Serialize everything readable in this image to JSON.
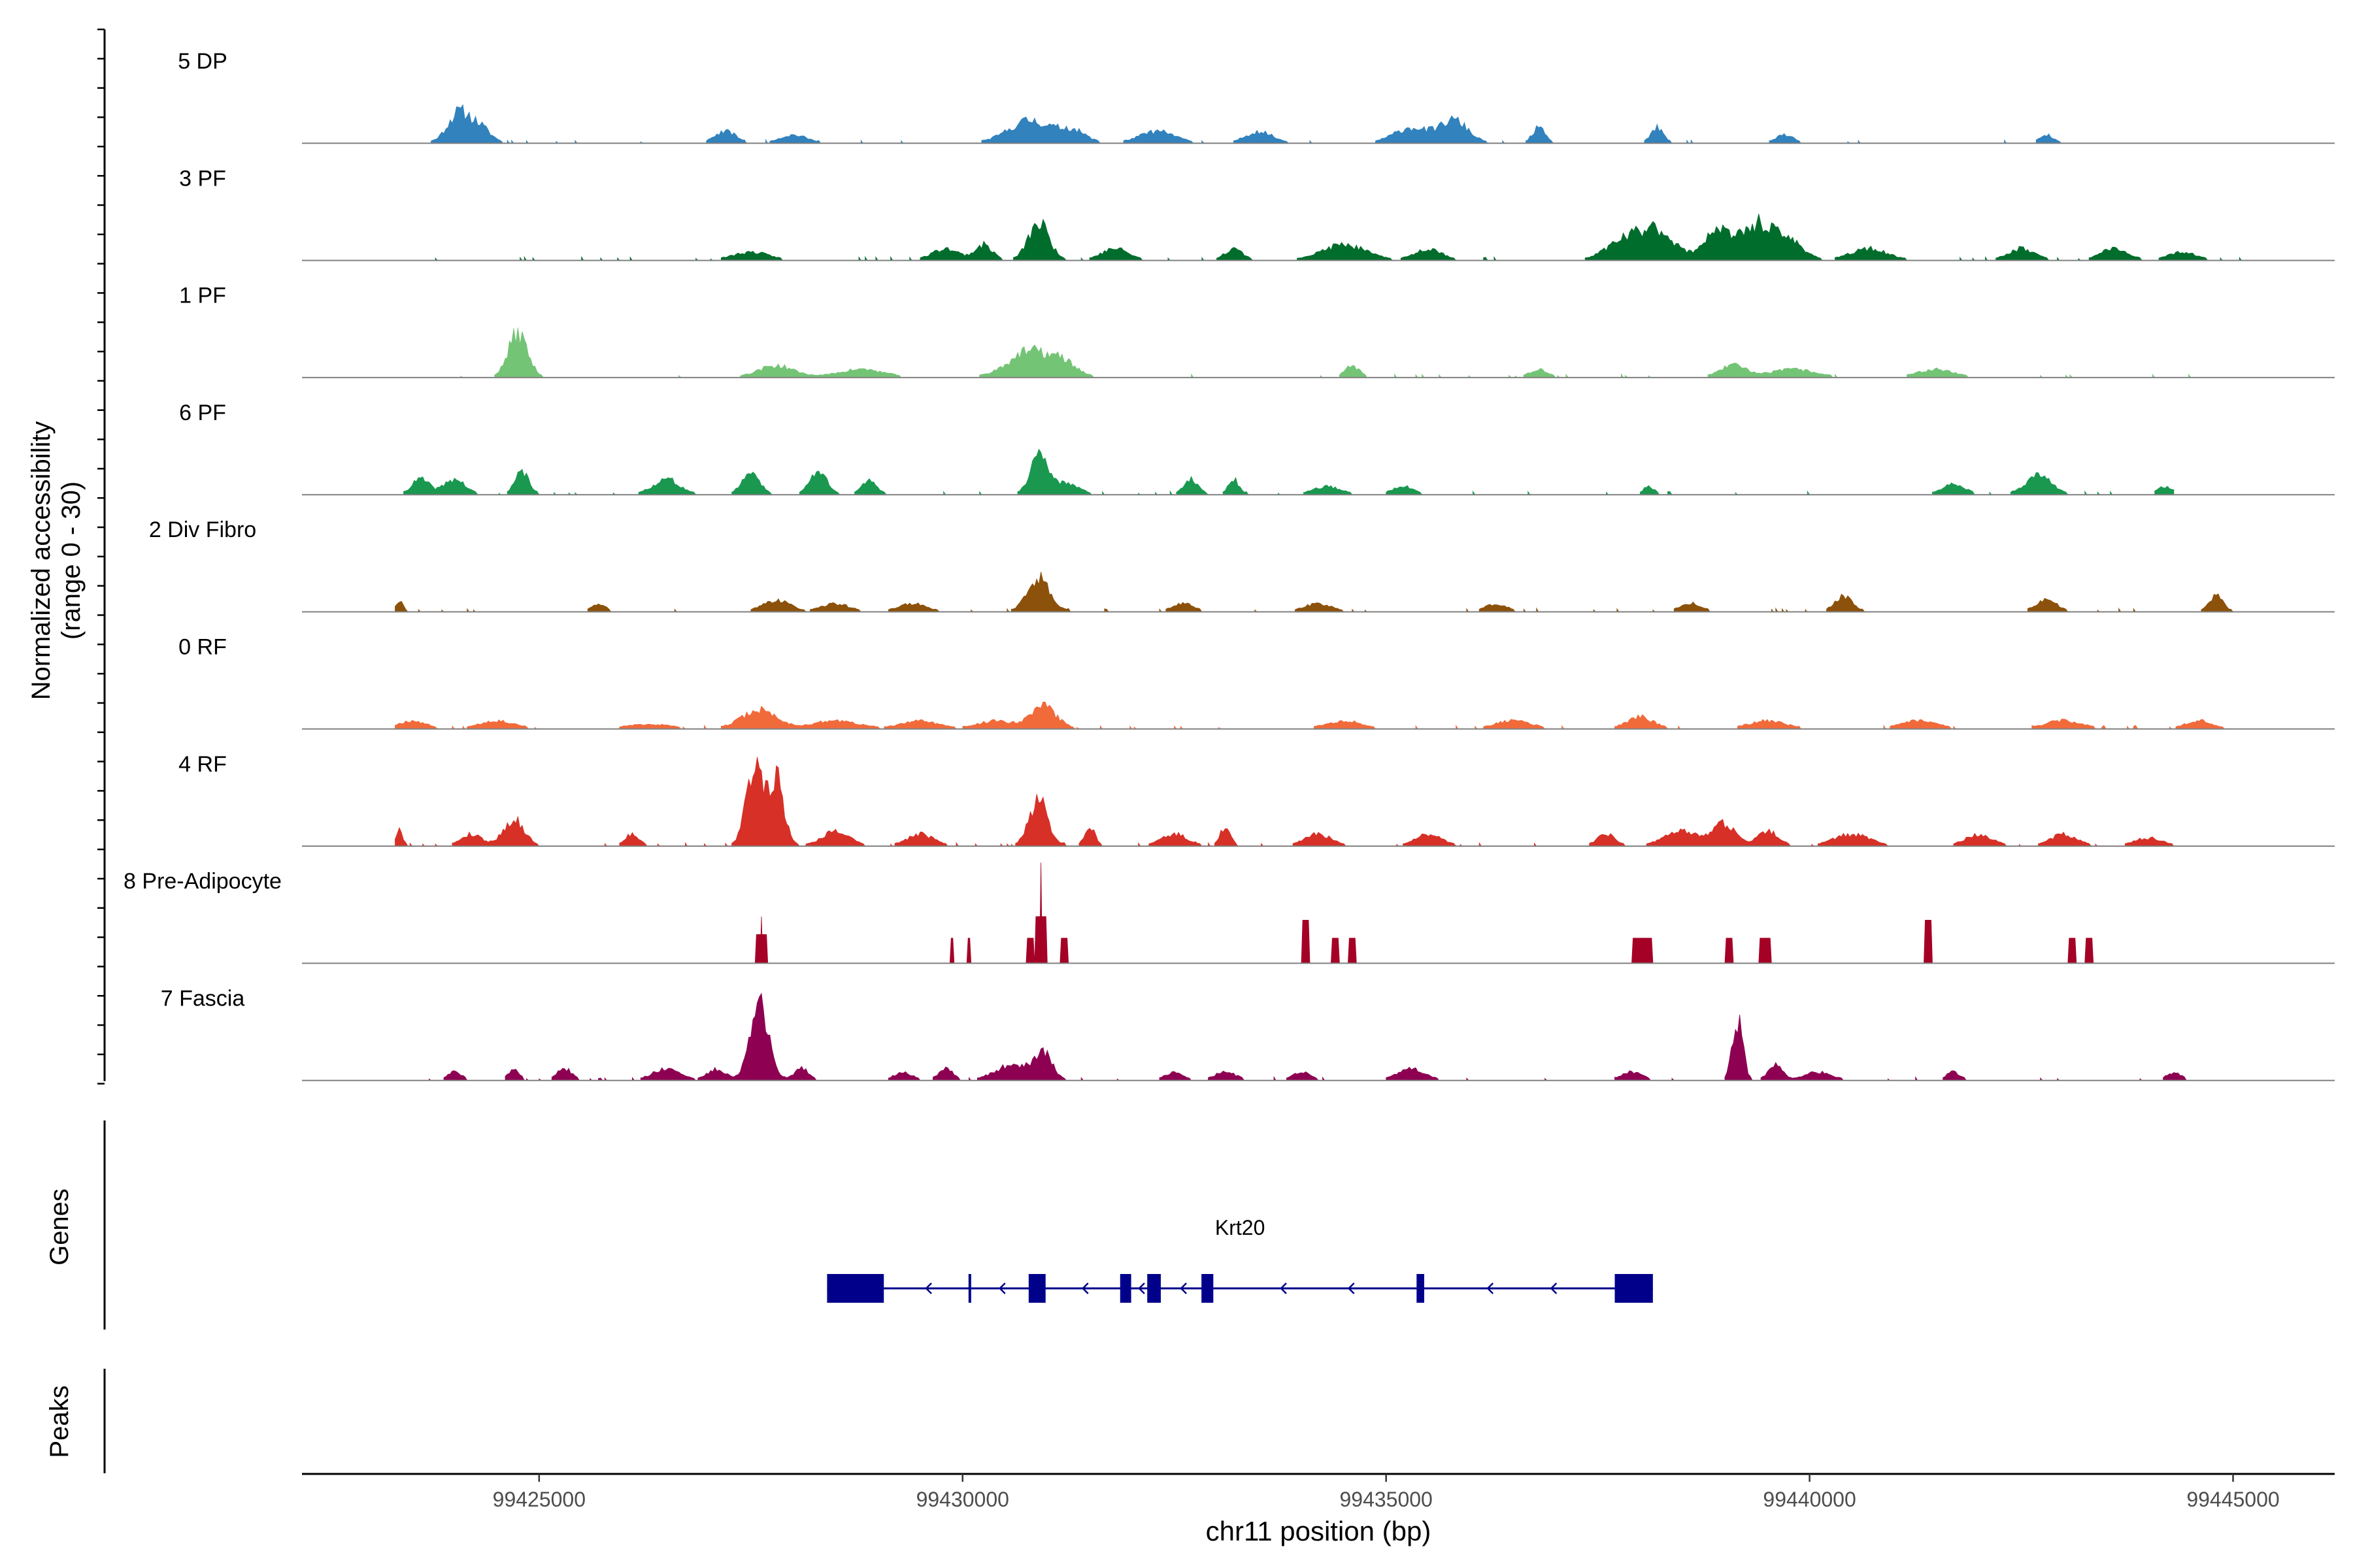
{
  "chart_data": {
    "type": "area",
    "subtype": "genome-coverage-track",
    "chromosome": "chr11",
    "xlabel": "chr11 position (bp)",
    "xlim": [
      99422200,
      99446200
    ],
    "xticks": [
      99425000,
      99430000,
      99435000,
      99440000,
      99445000
    ],
    "xtick_labels": [
      "99425000",
      "99430000",
      "99435000",
      "99440000",
      "99445000"
    ],
    "ylabel": [
      "Normalized accessibility",
      "(range 0 - 30)"
    ],
    "ylim": [
      0,
      30
    ],
    "panel_labels": {
      "genes": "Genes",
      "peaks": "Peaks"
    },
    "series": [
      {
        "name": "5 DP",
        "color": "#3182bd",
        "extent": [
          99423300,
          99443000
        ],
        "seed": 11,
        "peaks": [
          [
            99424050,
            8,
            130
          ],
          [
            99424300,
            4,
            120
          ],
          [
            99427200,
            3,
            120
          ],
          [
            99428000,
            2,
            150
          ],
          [
            99430800,
            6,
            250
          ],
          [
            99431300,
            3,
            150
          ],
          [
            99432300,
            3,
            200
          ],
          [
            99433500,
            3,
            150
          ],
          [
            99435300,
            4,
            200
          ],
          [
            99435800,
            6,
            160
          ],
          [
            99436800,
            4,
            70
          ],
          [
            99438200,
            4,
            70
          ],
          [
            99439700,
            2,
            100
          ],
          [
            99442800,
            2,
            80
          ]
        ]
      },
      {
        "name": "3 PF",
        "color": "#006d2c",
        "extent": [
          99423300,
          99445100
        ],
        "seed": 23,
        "peaks": [
          [
            99427500,
            2,
            200
          ],
          [
            99429800,
            3,
            150
          ],
          [
            99430250,
            4,
            100
          ],
          [
            99430900,
            10,
            120
          ],
          [
            99431800,
            3,
            150
          ],
          [
            99433200,
            3,
            100
          ],
          [
            99434500,
            4,
            250
          ],
          [
            99435500,
            3,
            150
          ],
          [
            99437800,
            5,
            200
          ],
          [
            99438200,
            8,
            200
          ],
          [
            99438900,
            8,
            150
          ],
          [
            99439400,
            10,
            200
          ],
          [
            99439800,
            4,
            150
          ],
          [
            99440700,
            3,
            200
          ],
          [
            99442500,
            3,
            150
          ],
          [
            99443600,
            3,
            150
          ],
          [
            99444400,
            2,
            150
          ]
        ]
      },
      {
        "name": "1 PF",
        "color": "#74c476",
        "extent": [
          99424000,
          99445000
        ],
        "seed": 37,
        "peaks": [
          [
            99424750,
            12,
            110
          ],
          [
            99427800,
            3,
            200
          ],
          [
            99428800,
            2,
            250
          ],
          [
            99430800,
            7,
            250
          ],
          [
            99431200,
            3,
            150
          ],
          [
            99434600,
            3,
            80
          ],
          [
            99436800,
            2,
            100
          ],
          [
            99439100,
            3,
            150
          ],
          [
            99439800,
            2,
            250
          ],
          [
            99441500,
            2,
            200
          ]
        ]
      },
      {
        "name": "6 PF",
        "color": "#1a9850",
        "extent": [
          99423300,
          99444300
        ],
        "seed": 41,
        "peaks": [
          [
            99423600,
            4,
            100
          ],
          [
            99424000,
            4,
            120
          ],
          [
            99424800,
            6,
            80
          ],
          [
            99426500,
            4,
            150
          ],
          [
            99427500,
            6,
            100
          ],
          [
            99428300,
            6,
            100
          ],
          [
            99428900,
            4,
            80
          ],
          [
            99430900,
            10,
            100
          ],
          [
            99431200,
            3,
            150
          ],
          [
            99432700,
            4,
            80
          ],
          [
            99433200,
            4,
            60
          ],
          [
            99434300,
            2,
            150
          ],
          [
            99435200,
            2,
            120
          ],
          [
            99438100,
            2,
            60
          ],
          [
            99441700,
            3,
            120
          ],
          [
            99442700,
            5,
            150
          ],
          [
            99444200,
            2,
            80
          ]
        ]
      },
      {
        "name": "2 Div Fibro",
        "color": "#8c510a",
        "extent": [
          99423300,
          99445000
        ],
        "seed": 53,
        "peaks": [
          [
            99423350,
            3,
            40
          ],
          [
            99425700,
            2,
            80
          ],
          [
            99427800,
            3,
            150
          ],
          [
            99428500,
            2,
            150
          ],
          [
            99429400,
            2,
            150
          ],
          [
            99430900,
            9,
            130
          ],
          [
            99432600,
            2,
            120
          ],
          [
            99434200,
            2,
            150
          ],
          [
            99436300,
            2,
            120
          ],
          [
            99438600,
            2,
            120
          ],
          [
            99440400,
            4,
            100
          ],
          [
            99442800,
            3,
            120
          ],
          [
            99444800,
            4,
            80
          ]
        ]
      },
      {
        "name": "0 RF",
        "color": "#f16a3a",
        "extent": [
          99423300,
          99445000
        ],
        "seed": 67,
        "peaks": [
          [
            99423500,
            2,
            150
          ],
          [
            99424500,
            2,
            200
          ],
          [
            99426300,
            1,
            250
          ],
          [
            99427600,
            5,
            200
          ],
          [
            99428500,
            2,
            250
          ],
          [
            99429500,
            2,
            200
          ],
          [
            99430400,
            2,
            200
          ],
          [
            99430950,
            6,
            150
          ],
          [
            99434500,
            2,
            200
          ],
          [
            99436500,
            2,
            200
          ],
          [
            99438000,
            3,
            150
          ],
          [
            99439500,
            2,
            200
          ],
          [
            99441300,
            2,
            200
          ],
          [
            99443000,
            2,
            200
          ],
          [
            99444600,
            2,
            150
          ]
        ]
      },
      {
        "name": "4 RF",
        "color": "#d73027",
        "extent": [
          99423300,
          99444500
        ],
        "seed": 79,
        "peaks": [
          [
            99423350,
            4,
            40
          ],
          [
            99424200,
            3,
            120
          ],
          [
            99424700,
            7,
            120
          ],
          [
            99426100,
            3,
            80
          ],
          [
            99427550,
            22,
            100
          ],
          [
            99427800,
            18,
            90
          ],
          [
            99428500,
            4,
            150
          ],
          [
            99429500,
            3,
            150
          ],
          [
            99430900,
            12,
            110
          ],
          [
            99431500,
            5,
            60
          ],
          [
            99432500,
            3,
            150
          ],
          [
            99433100,
            5,
            60
          ],
          [
            99434200,
            3,
            150
          ],
          [
            99435500,
            3,
            150
          ],
          [
            99437600,
            3,
            100
          ],
          [
            99438500,
            4,
            200
          ],
          [
            99439000,
            6,
            120
          ],
          [
            99439500,
            4,
            120
          ],
          [
            99440500,
            3,
            200
          ],
          [
            99442000,
            3,
            150
          ],
          [
            99443000,
            3,
            150
          ],
          [
            99444000,
            2,
            150
          ]
        ]
      },
      {
        "name": "8 Pre-Adipocyte",
        "color": "#a50026",
        "extent": [
          99427500,
          99443500
        ],
        "seed": 97,
        "blocks": [
          [
            99427550,
            99427700,
            8,
            13
          ],
          [
            99429850,
            99429900,
            7,
            0
          ],
          [
            99430050,
            99430100,
            7,
            0
          ],
          [
            99430750,
            99430850,
            7,
            0
          ],
          [
            99430850,
            99431000,
            13,
            28
          ],
          [
            99431150,
            99431250,
            7,
            0
          ],
          [
            99434000,
            99434100,
            12,
            0
          ],
          [
            99434350,
            99434450,
            7,
            0
          ],
          [
            99434550,
            99434650,
            7,
            0
          ],
          [
            99437900,
            99438150,
            7,
            0
          ],
          [
            99439000,
            99439100,
            7,
            0
          ],
          [
            99439400,
            99439550,
            7,
            0
          ],
          [
            99441350,
            99441450,
            12,
            0
          ],
          [
            99443050,
            99443150,
            7,
            0
          ],
          [
            99443250,
            99443350,
            7,
            0
          ]
        ]
      },
      {
        "name": "7 Fascia",
        "color": "#8e0152",
        "extent": [
          99423300,
          99444600
        ],
        "seed": 113,
        "peaks": [
          [
            99424000,
            2,
            80
          ],
          [
            99424700,
            3,
            60
          ],
          [
            99425300,
            3,
            80
          ],
          [
            99426500,
            3,
            150
          ],
          [
            99427100,
            3,
            100
          ],
          [
            99427600,
            20,
            110
          ],
          [
            99428100,
            3,
            80
          ],
          [
            99429300,
            2,
            100
          ],
          [
            99429800,
            3,
            80
          ],
          [
            99430600,
            4,
            200
          ],
          [
            99430950,
            7,
            100
          ],
          [
            99432500,
            2,
            100
          ],
          [
            99433100,
            2,
            120
          ],
          [
            99434000,
            2,
            100
          ],
          [
            99435300,
            3,
            150
          ],
          [
            99437900,
            2,
            120
          ],
          [
            99439150,
            17,
            60
          ],
          [
            99439600,
            4,
            80
          ],
          [
            99440100,
            2,
            150
          ],
          [
            99441700,
            2,
            80
          ],
          [
            99444300,
            2,
            80
          ]
        ]
      }
    ],
    "genes": [
      {
        "name": "Krt20",
        "strand": "-",
        "start": 99428400,
        "end": 99438150,
        "color": "#00008b",
        "exons": [
          [
            99428400,
            99429070,
            "utr"
          ],
          [
            99430070,
            99430100,
            "cds"
          ],
          [
            99430780,
            99430980,
            "cds"
          ],
          [
            99431860,
            99431990,
            "cds"
          ],
          [
            99432180,
            99432340,
            "cds"
          ],
          [
            99432820,
            99432960,
            "cds"
          ],
          [
            99435360,
            99435450,
            "cds"
          ],
          [
            99437700,
            99438150,
            "utr"
          ]
        ]
      }
    ],
    "peaks_track": []
  }
}
